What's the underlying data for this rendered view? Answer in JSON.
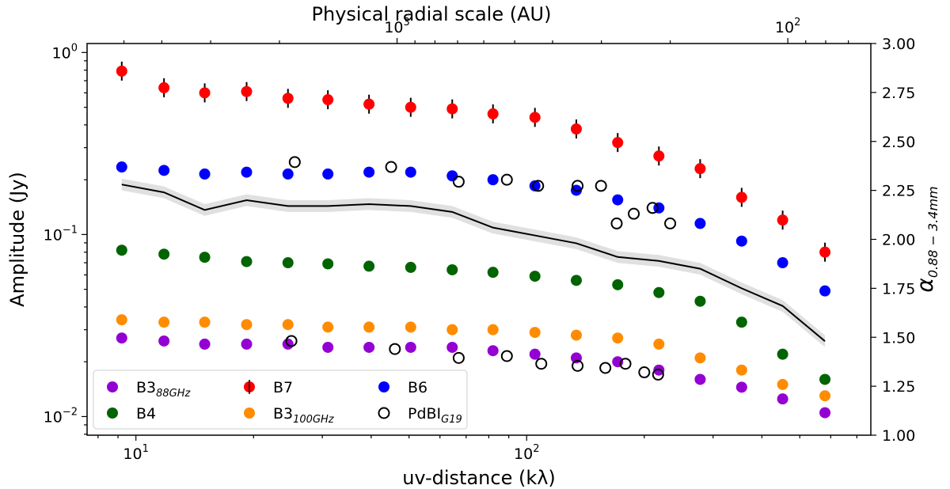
{
  "chart_data": {
    "type": "scatter",
    "title": "",
    "xlabel": "uv-distance (kλ)",
    "ylabel": "Amplitude (Jy)",
    "top_xlabel": "Physical radial scale (AU)",
    "right_ylabel": {
      "base": "α",
      "sub": "0.88 − 3.4mm"
    },
    "x_scale": "log",
    "y_scale": "log",
    "xlim": [
      7.5,
      760
    ],
    "ylim": [
      0.0079,
      1.12
    ],
    "right_ylim": [
      1.0,
      3.0
    ],
    "x_ticks": [
      {
        "value": 10,
        "base": "10",
        "exp": "1"
      },
      {
        "value": 100,
        "base": "10",
        "exp": "2"
      }
    ],
    "y_ticks": [
      {
        "value": 0.01,
        "base": "10",
        "exp": "−2"
      },
      {
        "value": 0.1,
        "base": "10",
        "exp": "−1"
      },
      {
        "value": 1,
        "base": "10",
        "exp": "0"
      }
    ],
    "top_ticks": [
      {
        "uv": 46.6,
        "base": "10",
        "exp": "3"
      },
      {
        "uv": 466,
        "base": "10",
        "exp": "2"
      }
    ],
    "right_ticks": [
      "1.00",
      "1.25",
      "1.50",
      "1.75",
      "2.00",
      "2.25",
      "2.50",
      "2.75",
      "3.00"
    ],
    "x": [
      9.2,
      11.8,
      15,
      19.2,
      24.5,
      31,
      39.5,
      50.5,
      64.5,
      82,
      105,
      134,
      171,
      218,
      278,
      355,
      452,
      580
    ],
    "series": [
      {
        "name": "B7",
        "color": "#ff0000",
        "marker": "filled",
        "errorbars": true,
        "values": [
          0.79,
          0.64,
          0.6,
          0.61,
          0.56,
          0.55,
          0.52,
          0.5,
          0.49,
          0.46,
          0.44,
          0.38,
          0.32,
          0.27,
          0.23,
          0.16,
          0.12,
          0.08
        ]
      },
      {
        "name": "B6",
        "color": "#0000ff",
        "marker": "filled",
        "values": [
          0.235,
          0.225,
          0.215,
          0.22,
          0.215,
          0.215,
          0.22,
          0.22,
          0.21,
          0.2,
          0.185,
          0.175,
          0.155,
          0.14,
          0.115,
          0.092,
          0.07,
          0.049
        ]
      },
      {
        "name": "B4",
        "color": "#006400",
        "marker": "filled",
        "values": [
          0.082,
          0.078,
          0.075,
          0.071,
          0.07,
          0.069,
          0.067,
          0.066,
          0.064,
          0.062,
          0.059,
          0.056,
          0.053,
          0.048,
          0.043,
          0.033,
          0.022,
          0.016
        ]
      },
      {
        "name": "B3",
        "sub": "100GHz",
        "color": "#ff8c00",
        "marker": "filled",
        "values": [
          0.034,
          0.033,
          0.033,
          0.032,
          0.032,
          0.031,
          0.031,
          0.031,
          0.03,
          0.03,
          0.029,
          0.028,
          0.027,
          0.025,
          0.021,
          0.018,
          0.015,
          0.013
        ]
      },
      {
        "name": "B3",
        "sub": "88GHz",
        "color": "#9400d3",
        "marker": "filled",
        "values": [
          0.027,
          0.026,
          0.025,
          0.025,
          0.025,
          0.024,
          0.024,
          0.024,
          0.024,
          0.023,
          0.022,
          0.021,
          0.02,
          0.018,
          0.016,
          0.0145,
          0.0125,
          0.0105
        ]
      }
    ],
    "pdbi": {
      "name": "PdBI",
      "sub": "G19",
      "marker": "open",
      "x": [
        25.5,
        45,
        67,
        89,
        107,
        135,
        155,
        170,
        188,
        210,
        233,
        25,
        46,
        67,
        89,
        109,
        135,
        159,
        179,
        200,
        217
      ],
      "values": [
        0.25,
        0.235,
        0.195,
        0.2,
        0.185,
        0.185,
        0.185,
        0.115,
        0.13,
        0.14,
        0.115,
        0.026,
        0.0235,
        0.021,
        0.0215,
        0.0195,
        0.019,
        0.0185,
        0.0195,
        0.0175,
        0.017
      ]
    },
    "alpha": {
      "color": "#000000",
      "band_color": "#cccccc",
      "x": [
        9.2,
        11.8,
        15,
        19.2,
        24.5,
        31,
        39.5,
        50.5,
        64.5,
        82,
        105,
        134,
        171,
        218,
        278,
        355,
        452,
        580
      ],
      "values": [
        2.28,
        2.24,
        2.15,
        2.2,
        2.17,
        2.17,
        2.18,
        2.17,
        2.14,
        2.06,
        2.02,
        1.98,
        1.91,
        1.89,
        1.85,
        1.75,
        1.66,
        1.48
      ],
      "band": 0.03
    },
    "legend": {
      "placement": "lower-left",
      "order": [
        4,
        2,
        0,
        3,
        1,
        "pdbi"
      ]
    }
  }
}
